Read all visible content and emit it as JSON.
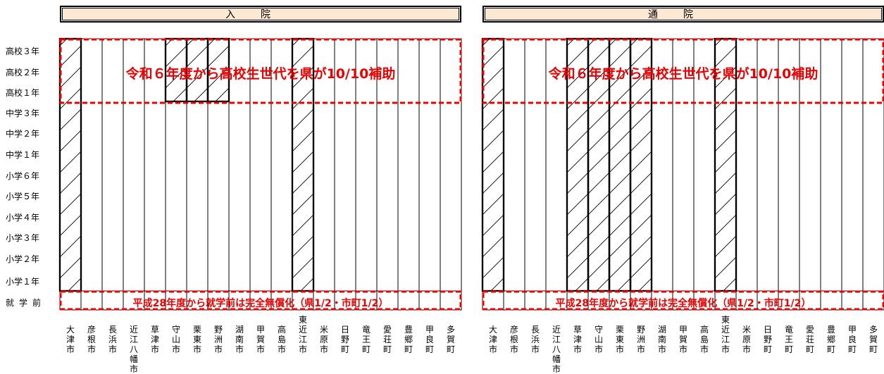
{
  "panels": [
    {
      "id": "inpatient",
      "title": "入院"
    },
    {
      "id": "outpatient",
      "title": "通院"
    }
  ],
  "grade_labels": [
    "高校３年",
    "高校２年",
    "高校１年",
    "中学３年",
    "中学２年",
    "中学１年",
    "小学６年",
    "小学５年",
    "小学４年",
    "小学３年",
    "小学２年",
    "小学１年"
  ],
  "preschool_label": "就学前",
  "banner_high_school": "令和６年度から高校生世代を県が10/10補助",
  "banner_preschool": "平成28年度から就学前は完全無償化（県1/2・市町1/2）",
  "cities": [
    "大津市",
    "彦根市",
    "長浜市",
    "近江八幡市",
    "草津市",
    "守山市",
    "栗東市",
    "野洲市",
    "湖南市",
    "甲賀市",
    "高島市",
    "東近江市",
    "米原市",
    "日野町",
    "竜王町",
    "愛荘町",
    "豊郷町",
    "甲良町",
    "多賀町"
  ],
  "chart_data": {
    "type": "table",
    "rows": [
      "高校３年",
      "高校２年",
      "高校１年",
      "中学３年",
      "中学２年",
      "中学１年",
      "小学６年",
      "小学５年",
      "小学４年",
      "小学３年",
      "小学２年",
      "小学１年",
      "就学前"
    ],
    "columns": [
      "大津市",
      "彦根市",
      "長浜市",
      "近江八幡市",
      "草津市",
      "守山市",
      "栗東市",
      "野洲市",
      "湖南市",
      "甲賀市",
      "高島市",
      "東近江市",
      "米原市",
      "日野町",
      "竜王町",
      "愛荘町",
      "豊郷町",
      "甲良町",
      "多賀町"
    ],
    "hatch_color": "#000000",
    "banner_color": "#ee0000",
    "header_fill": "#fde8d4",
    "panels": [
      {
        "title": "入院",
        "hatched": [
          {
            "city": "大津市",
            "from": "小学１年",
            "to": "高校３年"
          },
          {
            "city": "守山市",
            "from": "高校１年",
            "to": "高校３年"
          },
          {
            "city": "栗東市",
            "from": "高校１年",
            "to": "高校３年"
          },
          {
            "city": "野洲市",
            "from": "高校１年",
            "to": "高校３年"
          },
          {
            "city": "東近江市",
            "from": "小学１年",
            "to": "高校３年"
          }
        ]
      },
      {
        "title": "通院",
        "hatched": [
          {
            "city": "大津市",
            "from": "小学１年",
            "to": "高校３年"
          },
          {
            "city": "草津市",
            "from": "小学１年",
            "to": "高校３年"
          },
          {
            "city": "守山市",
            "from": "小学１年",
            "to": "高校３年"
          },
          {
            "city": "栗東市",
            "from": "小学１年",
            "to": "高校３年"
          },
          {
            "city": "野洲市",
            "from": "小学１年",
            "to": "高校３年"
          },
          {
            "city": "東近江市",
            "from": "小学１年",
            "to": "高校３年"
          }
        ]
      }
    ]
  }
}
